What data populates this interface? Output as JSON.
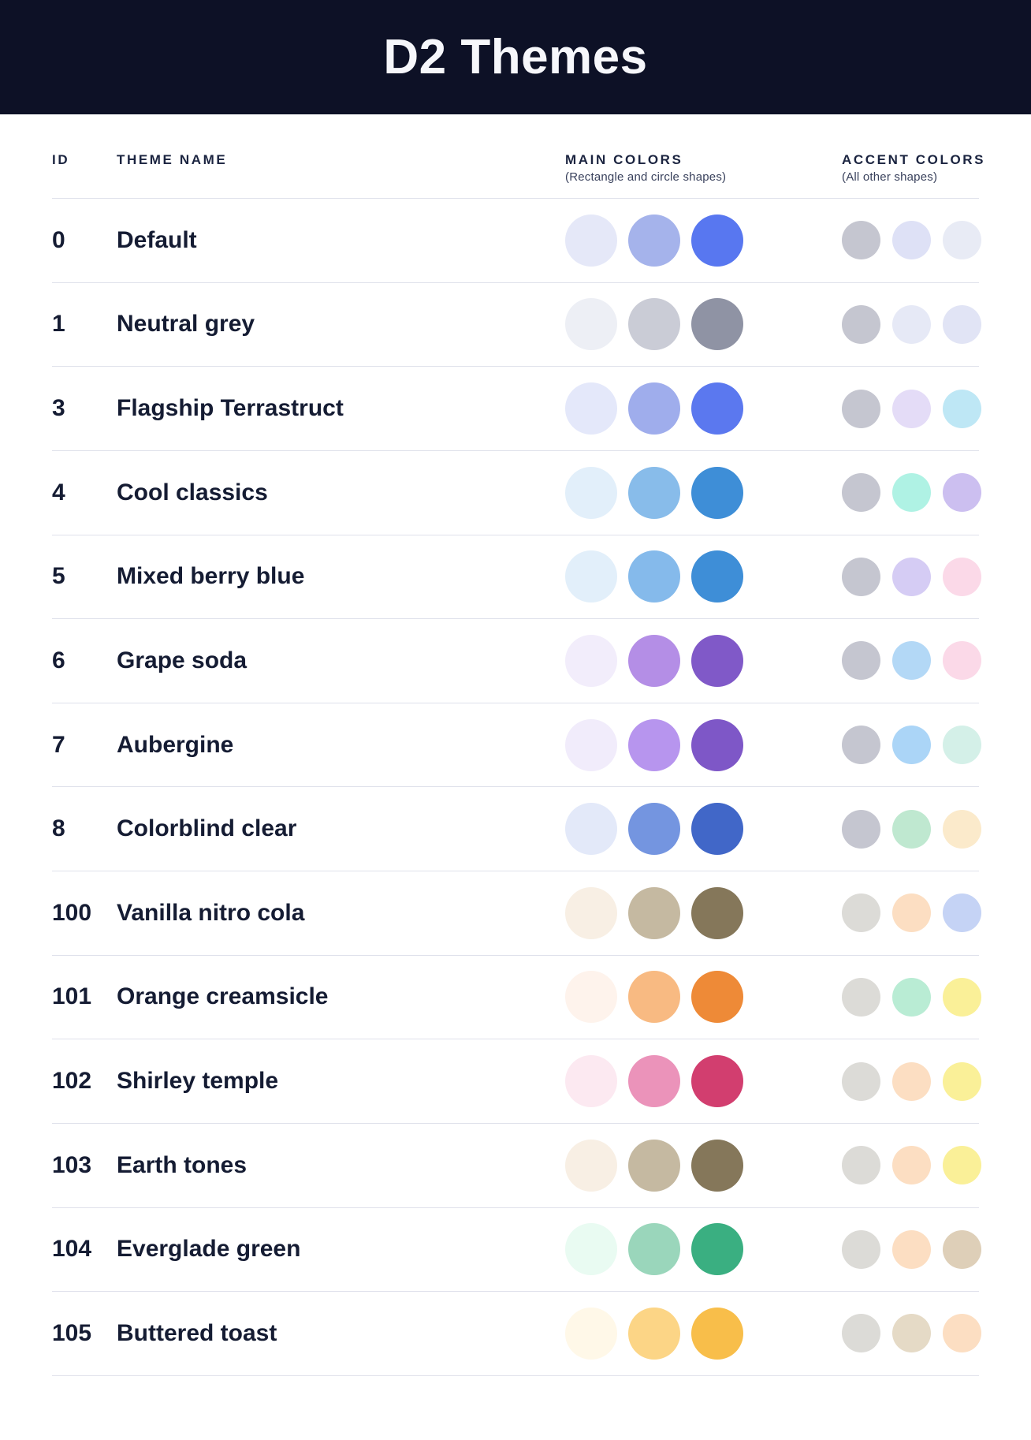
{
  "header": {
    "title": "D2 Themes",
    "background": "#0D1126",
    "text_color": "#F6F7FB"
  },
  "table": {
    "columns": {
      "id_label": "ID",
      "name_label": "THEME NAME",
      "main_label": "MAIN COLORS",
      "main_sublabel": "(Rectangle and circle shapes)",
      "accent_label": "ACCENT COLORS",
      "accent_sublabel": "(All other shapes)"
    },
    "rows": [
      {
        "id": "0",
        "name": "Default",
        "main": [
          "#E5E8F8",
          "#A5B3EB",
          "#5877F0"
        ],
        "accent": [
          "#C5C6D0",
          "#DEE1F6",
          "#E8EBF5"
        ]
      },
      {
        "id": "1",
        "name": "Neutral grey",
        "main": [
          "#EDEFF5",
          "#CACCD6",
          "#8F93A4"
        ],
        "accent": [
          "#C5C6D0",
          "#E6E9F6",
          "#E1E4F5"
        ]
      },
      {
        "id": "3",
        "name": "Flagship Terrastruct",
        "main": [
          "#E4E8FA",
          "#9FADEC",
          "#5B78EF"
        ],
        "accent": [
          "#C5C6D0",
          "#E4DCF7",
          "#BEE7F5"
        ]
      },
      {
        "id": "4",
        "name": "Cool classics",
        "main": [
          "#E2EFFA",
          "#88BCEA",
          "#3E8ED7"
        ],
        "accent": [
          "#C5C6D0",
          "#AFF2E4",
          "#CCBFF0"
        ]
      },
      {
        "id": "5",
        "name": "Mixed berry blue",
        "main": [
          "#E2EFFA",
          "#85BAEB",
          "#3E8ED7"
        ],
        "accent": [
          "#C5C6D0",
          "#D5CCF4",
          "#FBD9E8"
        ]
      },
      {
        "id": "6",
        "name": "Grape soda",
        "main": [
          "#F2EDFB",
          "#B48EE6",
          "#8059C8"
        ],
        "accent": [
          "#C5C6D0",
          "#B3D8F6",
          "#FBD9E8"
        ]
      },
      {
        "id": "7",
        "name": "Aubergine",
        "main": [
          "#F1ECFB",
          "#B795EE",
          "#7E57C7"
        ],
        "accent": [
          "#C5C6D0",
          "#ABD5F7",
          "#D4F0E8"
        ]
      },
      {
        "id": "8",
        "name": "Colorblind clear",
        "main": [
          "#E3E9F9",
          "#7495E0",
          "#4167C8"
        ],
        "accent": [
          "#C5C6D0",
          "#BFE8D0",
          "#FBEACB"
        ]
      },
      {
        "id": "100",
        "name": "Vanilla nitro cola",
        "main": [
          "#F8EFE4",
          "#C5B9A1",
          "#85775A"
        ],
        "accent": [
          "#DCDBD7",
          "#FCDEC2",
          "#C5D3F5"
        ]
      },
      {
        "id": "101",
        "name": "Orange creamsicle",
        "main": [
          "#FEF3EC",
          "#F8BA82",
          "#EE8A37"
        ],
        "accent": [
          "#DCDBD7",
          "#B9ECD4",
          "#FAF098"
        ]
      },
      {
        "id": "102",
        "name": "Shirley temple",
        "main": [
          "#FCE9F1",
          "#EB93BA",
          "#D23E6F"
        ],
        "accent": [
          "#DCDBD7",
          "#FCDEC2",
          "#FAF098"
        ]
      },
      {
        "id": "103",
        "name": "Earth tones",
        "main": [
          "#F8EFE4",
          "#C5B9A1",
          "#85775A"
        ],
        "accent": [
          "#DCDBD7",
          "#FCDEC2",
          "#FAF098"
        ]
      },
      {
        "id": "104",
        "name": "Everglade green",
        "main": [
          "#E9FBF2",
          "#9AD6BB",
          "#3AAF81"
        ],
        "accent": [
          "#DCDBD7",
          "#FCDEC2",
          "#DECFB8"
        ]
      },
      {
        "id": "105",
        "name": "Buttered toast",
        "main": [
          "#FFF8E8",
          "#FCD586",
          "#F8BE4A"
        ],
        "accent": [
          "#DCDBD7",
          "#E5DAC6",
          "#FCDEC2"
        ]
      }
    ]
  },
  "colors": {
    "separator": "#DFE1EB",
    "body_text": "#151C33",
    "header_label_text": "#1B2440",
    "sublabel_text": "#39415C"
  }
}
